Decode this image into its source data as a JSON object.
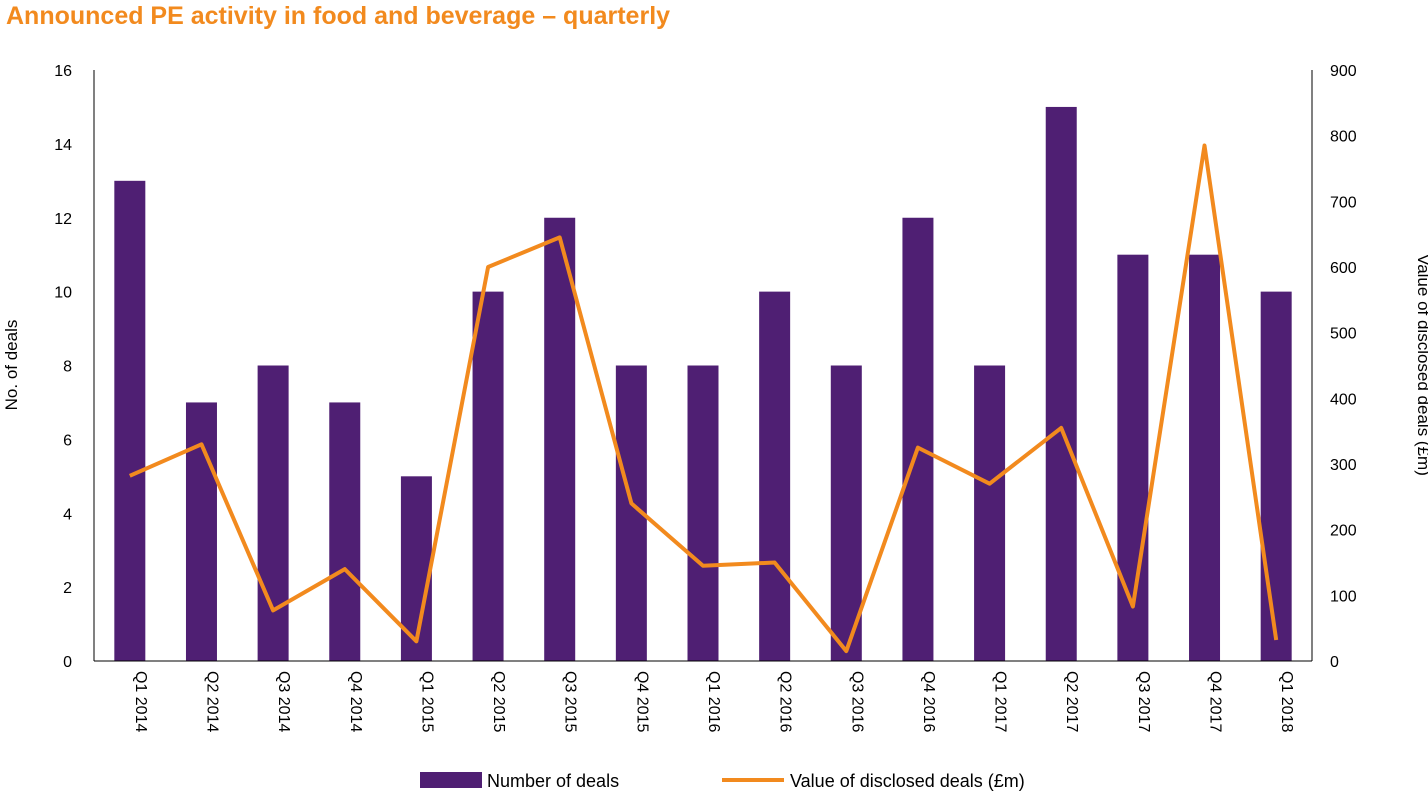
{
  "chart_data": {
    "type": "bar",
    "title": "Announced PE activity in food and beverage – quarterly",
    "categories": [
      "Q1 2014",
      "Q2 2014",
      "Q3 2014",
      "Q4 2014",
      "Q1 2015",
      "Q2 2015",
      "Q3 2015",
      "Q4 2015",
      "Q1 2016",
      "Q2 2016",
      "Q3 2016",
      "Q4 2016",
      "Q1 2017",
      "Q2 2017",
      "Q3 2017",
      "Q4 2017",
      "Q1 2018"
    ],
    "series": [
      {
        "name": "Number of deals",
        "type": "bar",
        "axis": "left",
        "color": "#4f1f73",
        "values": [
          13,
          7,
          8,
          7,
          5,
          10,
          12,
          8,
          8,
          10,
          8,
          12,
          8,
          15,
          11,
          11,
          10
        ]
      },
      {
        "name": "Value of disclosed deals (£m)",
        "type": "line",
        "axis": "right",
        "color": "#f28a1e",
        "values": [
          282,
          330,
          77,
          140,
          30,
          600,
          645,
          240,
          145,
          150,
          15,
          325,
          270,
          355,
          83,
          785,
          32
        ]
      }
    ],
    "ylabel": "No. of deals",
    "ylim": [
      0,
      16
    ],
    "yticks": [
      "0",
      "2",
      "4",
      "6",
      "8",
      "10",
      "12",
      "14",
      "16"
    ],
    "y2label": "Value of disclosed deals (£m)",
    "y2lim": [
      0,
      900
    ],
    "y2ticks": [
      "0",
      "100",
      "200",
      "300",
      "400",
      "500",
      "600",
      "700",
      "800",
      "900"
    ],
    "legend": "bottom",
    "grid": false
  }
}
